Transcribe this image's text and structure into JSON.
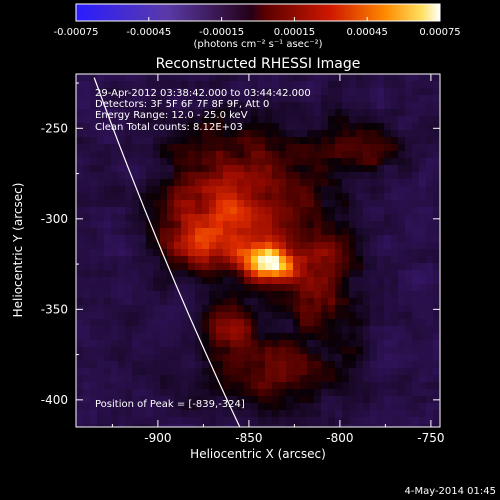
{
  "colorbar": {
    "tick_labels": [
      "-0.00075",
      "-0.00045",
      "-0.00015",
      "0.00015",
      "0.00045",
      "0.00075"
    ],
    "tick_values": [
      -0.00075,
      -0.00045,
      -0.00015,
      0.00015,
      0.00045,
      0.00075
    ],
    "range": [
      -0.00075,
      0.00075
    ],
    "units": "(photons cm⁻² s⁻¹ asec⁻²)"
  },
  "chart_data": {
    "type": "heatmap",
    "title": "Reconstructed RHESSI Image",
    "xlabel": "Heliocentric X (arcsec)",
    "ylabel": "Heliocentric Y (arcsec)",
    "xlim": [
      -945,
      -745
    ],
    "ylim": [
      -415,
      -220
    ],
    "x_ticks": [
      -900,
      -850,
      -800,
      -750
    ],
    "y_ticks": [
      -250,
      -300,
      -350,
      -400
    ],
    "x_tick_labels": [
      "-900",
      "-850",
      "-800",
      "-750"
    ],
    "y_tick_labels": [
      "-250",
      "-300",
      "-350",
      "-400"
    ],
    "annotations": [
      "29-Apr-2012 03:38:42.000 to 03:44:42.000",
      "Detectors: 3F 5F 6F 7F 8F 9F, Att 0",
      "Energy Range: 12.0 - 25.0 keV",
      "Clean     Total counts: 8.12E+03"
    ],
    "peak_label": "Position of Peak = [-839,-324]",
    "peak": {
      "x": -839,
      "y": -324
    },
    "limb_arc": [
      {
        "x": -935,
        "y": -222
      },
      {
        "x": -897,
        "y": -320
      },
      {
        "x": -855,
        "y": -415
      }
    ],
    "sources": [
      {
        "x": -839,
        "y": -324,
        "sx": 9,
        "sy": 7,
        "amp": 1.0
      },
      {
        "x": -870,
        "y": -310,
        "sx": 20,
        "sy": 13,
        "amp": 0.5
      },
      {
        "x": -855,
        "y": -280,
        "sx": 28,
        "sy": 20,
        "amp": 0.36
      },
      {
        "x": -812,
        "y": -332,
        "sx": 14,
        "sy": 22,
        "amp": 0.33
      },
      {
        "x": -860,
        "y": -360,
        "sx": 9,
        "sy": 11,
        "amp": 0.32
      },
      {
        "x": -835,
        "y": -385,
        "sx": 24,
        "sy": 14,
        "amp": 0.25
      },
      {
        "x": -790,
        "y": -260,
        "sx": 14,
        "sy": 12,
        "amp": 0.2
      }
    ],
    "colormap": "RHESSI red-temperature (negative: blue/purple, positive: red→yellow→white)"
  },
  "footer": {
    "date": "4-May-2014 01:45"
  }
}
